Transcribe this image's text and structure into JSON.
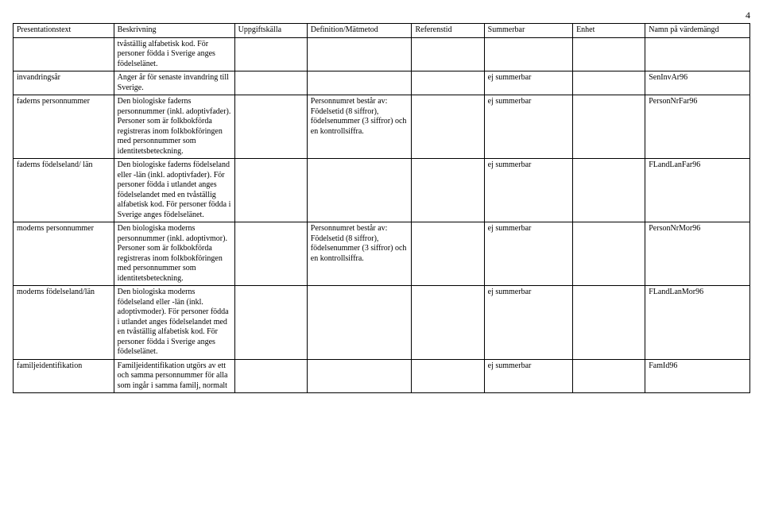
{
  "pageNumber": "4",
  "headers": [
    "Presentationstext",
    "Beskrivning",
    "Uppgiftskälla",
    "Definition/Mätmetod",
    "Referenstid",
    "Summerbar",
    "Enhet",
    "Namn på värdemängd"
  ],
  "rows": [
    {
      "c1": "",
      "c2": "tvåställig alfabetisk kod. För personer födda i Sverige anges födelselänet.",
      "c3": "",
      "c4": "",
      "c5": "",
      "c6": "",
      "c7": "",
      "c8": ""
    },
    {
      "c1": "invandringsår",
      "c2": "Anger år för senaste invandring till Sverige.",
      "c3": "",
      "c4": "",
      "c5": "",
      "c6": "ej summerbar",
      "c7": "",
      "c8": "SenInvAr96"
    },
    {
      "c1": "faderns personnummer",
      "c2": "Den biologiske faderns personnummer (inkl. adoptivfader). Personer som är folkbokförda registreras inom folkbokföringen med personnummer som identitetsbeteckning.",
      "c3": "",
      "c4": "Personnumret består av: Födelsetid (8 siffror), födelsenummer (3 siffror) och en kontrollsiffra.",
      "c5": "",
      "c6": "ej summerbar",
      "c7": "",
      "c8": "PersonNrFar96"
    },
    {
      "c1": "faderns födelseland/ län",
      "c2": "Den biologiske faderns födelseland eller -län (inkl. adoptivfader). För personer födda i utlandet anges födelselandet med en tvåställig alfabetisk kod. För personer födda i Sverige anges födelselänet.",
      "c3": "",
      "c4": "",
      "c5": "",
      "c6": "ej summerbar",
      "c7": "",
      "c8": "FLandLanFar96"
    },
    {
      "c1": "moderns personnummer",
      "c2": "Den biologiska moderns personnummer (inkl. adoptivmor). Personer som är folkbokförda registreras inom folkbokföringen med personnummer som identitetsbeteckning.",
      "c3": "",
      "c4": "Personnumret består av: Födelsetid (8 siffror), födelsenummer (3 siffror) och en kontrollsiffra.",
      "c5": "",
      "c6": "ej summerbar",
      "c7": "",
      "c8": "PersonNrMor96"
    },
    {
      "c1": "moderns födelseland/län",
      "c2": "Den biologiska moderns födelseland eller -län (inkl. adoptivmoder). För personer födda i utlandet anges födelselandet med en tvåställig alfabetisk kod. För personer födda i Sverige anges födelselänet.",
      "c3": "",
      "c4": "",
      "c5": "",
      "c6": "ej summerbar",
      "c7": "",
      "c8": "FLandLanMor96"
    },
    {
      "c1": "familjeidentifikation",
      "c2": "Familjeidentifikation utgörs av ett och samma personnummer för alla som ingår i samma familj, normalt",
      "c3": "",
      "c4": "",
      "c5": "",
      "c6": "ej summerbar",
      "c7": "",
      "c8": "FamId96"
    }
  ]
}
